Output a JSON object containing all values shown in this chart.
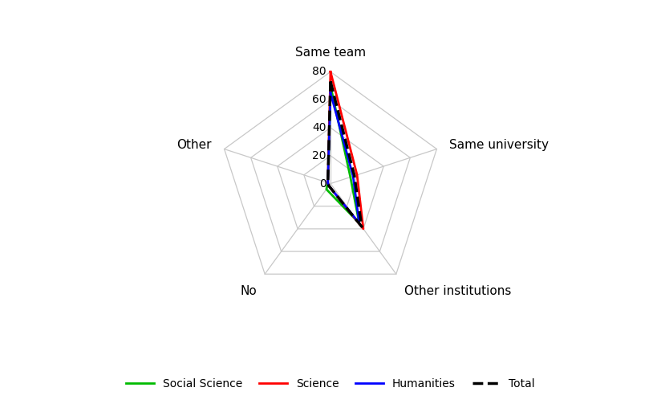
{
  "categories": [
    "Same team",
    "Same university",
    "Other institutions",
    "No",
    "Other"
  ],
  "series": {
    "Social Science": [
      70,
      15,
      35,
      5,
      2
    ],
    "Science": [
      80,
      20,
      40,
      2,
      2
    ],
    "Humanities": [
      65,
      17,
      35,
      2,
      2
    ],
    "Total": [
      73,
      18,
      38,
      2,
      2
    ]
  },
  "colors": {
    "Social Science": "#00BB00",
    "Science": "#FF0000",
    "Humanities": "#0000FF",
    "Total": "#000000"
  },
  "linestyles": {
    "Social Science": "-",
    "Science": "-",
    "Humanities": "-",
    "Total": "--"
  },
  "linewidths": {
    "Social Science": 2.0,
    "Science": 2.0,
    "Humanities": 2.0,
    "Total": 2.5
  },
  "rmax": 80,
  "rticks": [
    0,
    20,
    40,
    60,
    80
  ],
  "grid_color": "#c8c8c8",
  "background_color": "#ffffff",
  "legend_order": [
    "Social Science",
    "Science",
    "Humanities",
    "Total"
  ],
  "label_fontsize": 11,
  "tick_fontsize": 10
}
